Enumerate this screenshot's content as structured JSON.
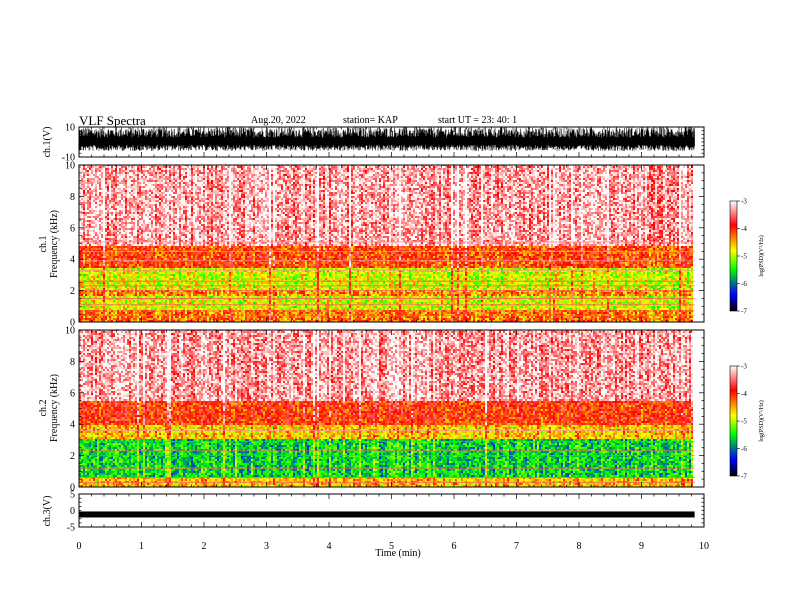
{
  "header": {
    "title": "VLF Spectra",
    "date": "Aug.20, 2022",
    "station": "station= KAP",
    "start": "start  UT  =   23: 40: 1"
  },
  "colorbar": {
    "label": "log(PSD)(V²/Hz)",
    "ticks": [
      "-3",
      "-4",
      "-5",
      "-6",
      "-7"
    ],
    "stops": [
      "#ffffff",
      "#ff0000",
      "#ffff00",
      "#00ff00",
      "#0000ff",
      "#000000"
    ]
  },
  "chart_data": [
    {
      "type": "line",
      "panel": "waveform",
      "ylabel": "ch.1(V)",
      "ylim": [
        -10,
        10
      ],
      "yticks": [
        "10",
        "-10"
      ],
      "description_series": "dense waveform spanning approx -6 to +10 V",
      "xlim": [
        0,
        10
      ]
    },
    {
      "type": "heatmap",
      "panel": "spectrogram",
      "ylabel": "ch.1\nFrequency  (kHz)",
      "ylim": [
        0,
        10
      ],
      "yticks": [
        "0",
        "2",
        "4",
        "6",
        "8",
        "10"
      ],
      "xlim": [
        0,
        10
      ],
      "data_end_min": 9.85,
      "zlim": [
        -7,
        -3
      ],
      "bands": [
        {
          "f": [
            0,
            0.8
          ],
          "level": -4.3
        },
        {
          "f": [
            0.8,
            1.6
          ],
          "level": -4.9
        },
        {
          "f": [
            1.6,
            2.1
          ],
          "level": -4.4
        },
        {
          "f": [
            2.1,
            3.5
          ],
          "level": -4.9
        },
        {
          "f": [
            3.5,
            4.8
          ],
          "level": -4.1
        },
        {
          "f": [
            4.8,
            10
          ],
          "level": -3.3
        }
      ]
    },
    {
      "type": "heatmap",
      "panel": "spectrogram",
      "ylabel": "ch.2\nFrequency  (kHz)",
      "ylim": [
        0,
        10
      ],
      "yticks": [
        "0",
        "2",
        "4",
        "6",
        "8",
        "10"
      ],
      "xlim": [
        0,
        10
      ],
      "data_end_min": 9.85,
      "zlim": [
        -7,
        -3
      ],
      "bands": [
        {
          "f": [
            0,
            0.6
          ],
          "level": -4.6
        },
        {
          "f": [
            0.6,
            3.0
          ],
          "level": -5.6
        },
        {
          "f": [
            3.0,
            4.0
          ],
          "level": -4.6
        },
        {
          "f": [
            4.0,
            5.5
          ],
          "level": -4.0
        },
        {
          "f": [
            5.5,
            10
          ],
          "level": -3.3
        }
      ]
    },
    {
      "type": "line",
      "panel": "waveform",
      "ylabel": "ch.3(V)",
      "ylim": [
        -5,
        5
      ],
      "yticks": [
        "5",
        "0",
        "-5"
      ],
      "constant_level": -1.2,
      "xlim": [
        0,
        10
      ]
    }
  ],
  "xaxis": {
    "label": "Time  (min)",
    "ticks": [
      "0",
      "1",
      "2",
      "3",
      "4",
      "5",
      "6",
      "7",
      "8",
      "9",
      "10"
    ]
  }
}
